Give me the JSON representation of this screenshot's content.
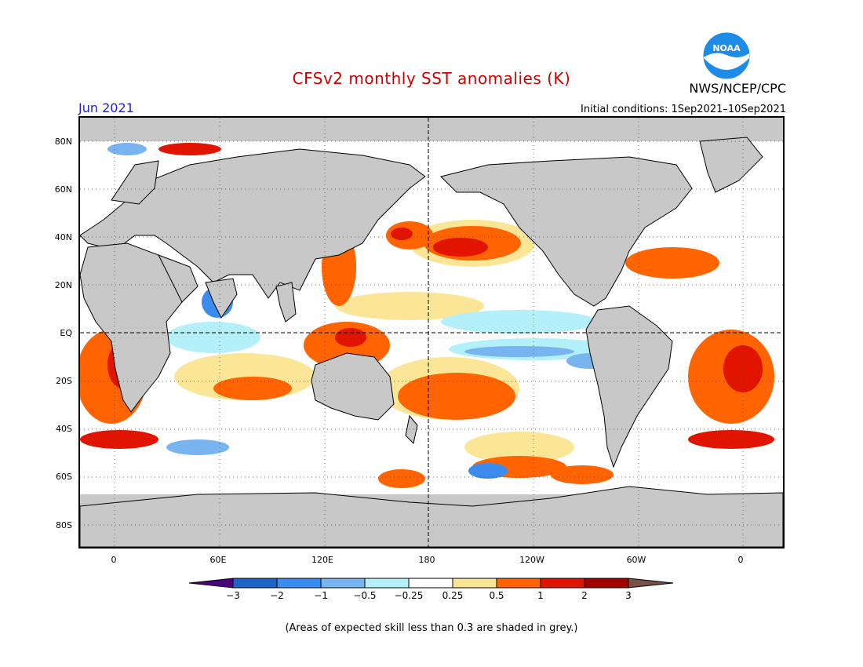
{
  "title": "CFSv2 monthly SST anomalies (K)",
  "forecast_month": "Jun 2021",
  "initial_conditions": "Initial conditions: 1Sep2021–10Sep2021",
  "agency": "NWS/NCEP/CPC",
  "logo_text": "NOAA",
  "map": {
    "projection": "equirectangular",
    "lon_range": [
      -20,
      380
    ],
    "lat_range": [
      -90,
      90
    ],
    "land_color": "#c8c8c8",
    "y_labels": [
      "80N",
      "60N",
      "40N",
      "20N",
      "EQ",
      "20S",
      "40S",
      "60S",
      "80S"
    ],
    "x_labels": [
      "0",
      "60E",
      "120E",
      "180",
      "120W",
      "60W",
      "0"
    ],
    "reference_lines": [
      "equator dashed",
      "dateline dashed"
    ]
  },
  "colorbar": {
    "tick_labels": [
      "−3",
      "−2",
      "−1",
      "−0.5",
      "−0.25",
      "0.25",
      "0.5",
      "1",
      "2",
      "3"
    ],
    "colors": [
      "#4b0082",
      "#1e64c8",
      "#3c8cf0",
      "#78b4f0",
      "#b4f0fa",
      "#ffffff",
      "#fae696",
      "#ff6400",
      "#e11400",
      "#a50000",
      "#785046"
    ]
  },
  "footnote": "(Areas of expected skill less than 0.3 are shaded in grey.)"
}
